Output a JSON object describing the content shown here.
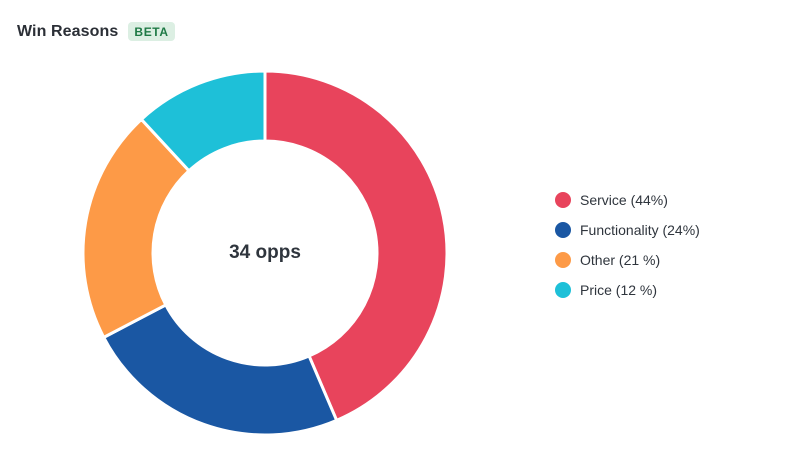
{
  "header": {
    "title": "Win Reasons",
    "badge": "BETA"
  },
  "chart_data": {
    "type": "pie",
    "style": "donut",
    "center_text": "34 opps",
    "legend_position": "right",
    "slices": [
      {
        "label": "Service (44%)",
        "name": "Service",
        "value": 44,
        "color": "#e8445c"
      },
      {
        "label": "Functionality (24%)",
        "name": "Functionality",
        "value": 24,
        "color": "#1a57a3"
      },
      {
        "label": "Other (21 %)",
        "name": "Other",
        "value": 21,
        "color": "#fd9a47"
      },
      {
        "label": "Price (12 %)",
        "name": "Price",
        "value": 12,
        "color": "#1ec0d8"
      }
    ]
  }
}
